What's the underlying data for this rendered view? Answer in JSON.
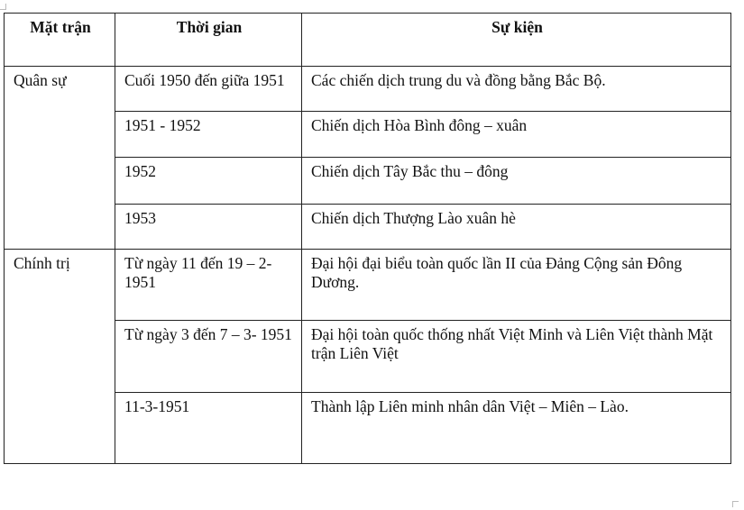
{
  "table": {
    "headers": [
      "Mặt trận",
      "Thời gian",
      "Sự kiện"
    ],
    "groups": [
      {
        "front": "Quân sự",
        "rows": [
          {
            "time": "Cuối 1950 đến giữa 1951",
            "event": "Các chiến dịch trung du và đồng bằng Bắc Bộ."
          },
          {
            "time": "1951 - 1952",
            "event": "Chiến dịch Hòa Bình đông – xuân"
          },
          {
            "time": "1952",
            "event": "Chiến dịch Tây Bắc thu – đông"
          },
          {
            "time": "1953",
            "event": "Chiến dịch Thượng Lào xuân hè"
          }
        ]
      },
      {
        "front": "Chính trị",
        "rows": [
          {
            "time": "Từ ngày 11 đến 19 – 2- 1951",
            "event": "Đại hội đại biểu toàn quốc lần II của Đảng Cộng sản Đông Dương."
          },
          {
            "time": "Từ ngày 3 đến 7 – 3- 1951",
            "event": "Đại hội toàn quốc thống nhất Việt Minh và Liên Việt thành Mặt trận Liên Việt"
          },
          {
            "time": "11-3-1951",
            "event": "Thành lập Liên minh nhân dân Việt – Miên – Lào."
          }
        ]
      }
    ]
  }
}
